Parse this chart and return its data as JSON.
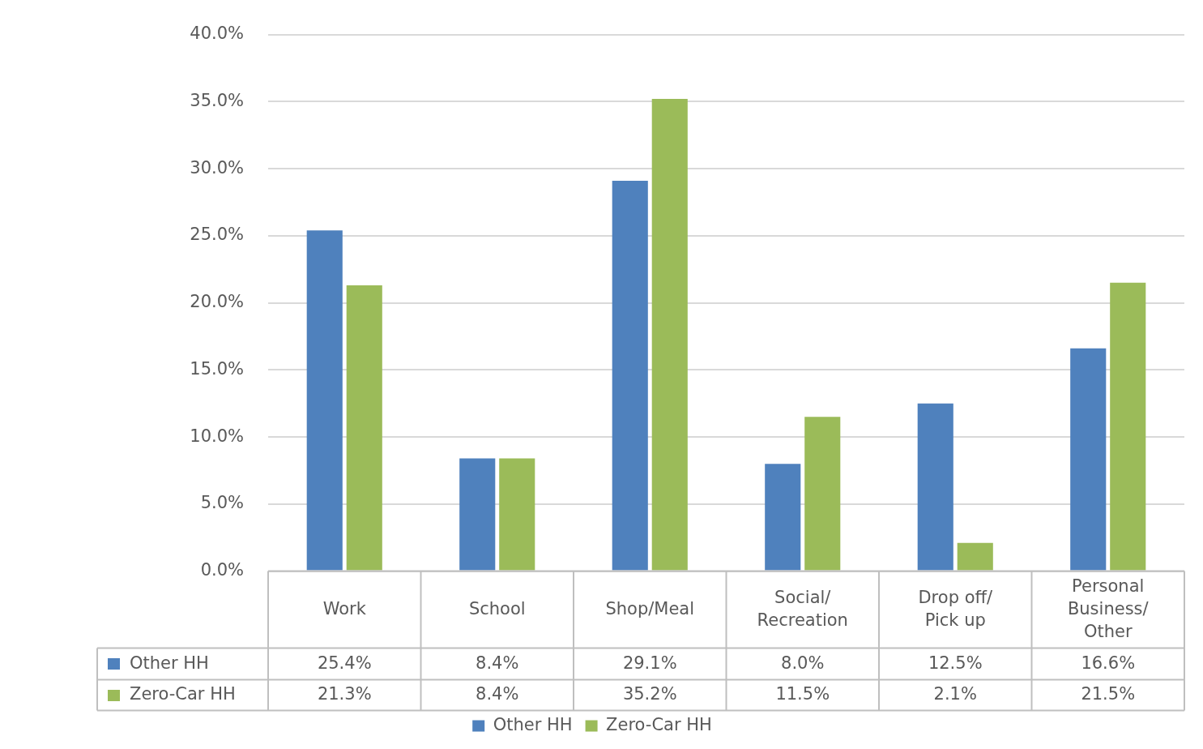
{
  "chart_data": {
    "type": "bar",
    "categories": [
      "Work",
      "School",
      "Shop/Meal",
      "Social/ Recreation",
      "Drop off/ Pick up",
      "Personal Business/ Other"
    ],
    "series": [
      {
        "name": "Other HH",
        "color": "#4f81bd",
        "values": [
          25.4,
          8.4,
          29.1,
          8.0,
          12.5,
          16.6
        ],
        "value_labels": [
          "25.4%",
          "8.4%",
          "29.1%",
          "8.0%",
          "12.5%",
          "16.6%"
        ]
      },
      {
        "name": "Zero-Car HH",
        "color": "#9bbb59",
        "values": [
          21.3,
          8.4,
          35.2,
          11.5,
          2.1,
          21.5
        ],
        "value_labels": [
          "21.3%",
          "8.4%",
          "35.2%",
          "11.5%",
          "2.1%",
          "21.5%"
        ]
      }
    ],
    "ylim": [
      0,
      40
    ],
    "yticks": [
      {
        "value": 0,
        "label": "0.0%"
      },
      {
        "value": 5,
        "label": "5.0%"
      },
      {
        "value": 10,
        "label": "10.0%"
      },
      {
        "value": 15,
        "label": "15.0%"
      },
      {
        "value": 20,
        "label": "20.0%"
      },
      {
        "value": 25,
        "label": "25.0%"
      },
      {
        "value": 30,
        "label": "30.0%"
      },
      {
        "value": 35,
        "label": "35.0%"
      },
      {
        "value": 40,
        "label": "40.0%"
      }
    ],
    "grid": "y",
    "legend": "bottom"
  }
}
